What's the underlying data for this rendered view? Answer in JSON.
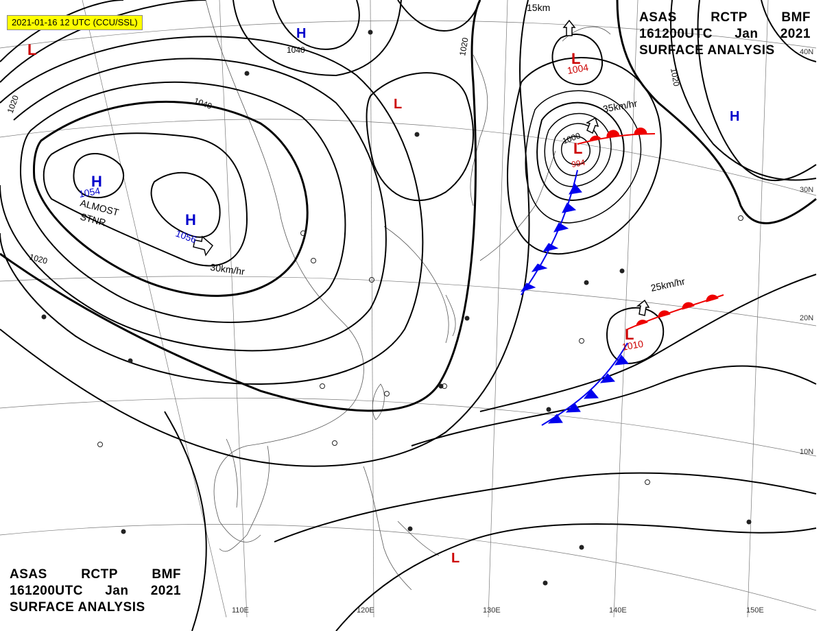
{
  "banner": {
    "text": "2021-01-16 12 UTC (CCU/SSL)"
  },
  "title": {
    "line1": [
      "ASAS",
      "RCTP",
      "BMF"
    ],
    "line2": [
      "161200UTC",
      "Jan",
      "2021"
    ],
    "line3": "SURFACE ANALYSIS"
  },
  "longitude_labels": [
    "110E",
    "120E",
    "130E",
    "140E",
    "150E"
  ],
  "latitude_labels": [
    "10N",
    "20N",
    "30N",
    "40N"
  ],
  "pressure_centers": [
    {
      "type": "H",
      "value": "1054",
      "color": "#0000cc"
    },
    {
      "type": "H",
      "value": "1056",
      "color": "#0000cc"
    },
    {
      "type": "H",
      "value": "1040",
      "color": "#000000"
    },
    {
      "type": "H",
      "value": "",
      "color": "#0000cc"
    },
    {
      "type": "L",
      "value": "1004",
      "color": "#cc0000"
    },
    {
      "type": "L",
      "value": "994",
      "color": "#cc0000"
    },
    {
      "type": "L",
      "value": "1010",
      "color": "#cc0000"
    },
    {
      "type": "L",
      "value": "",
      "color": "#cc0000"
    },
    {
      "type": "L",
      "value": "",
      "color": "#cc0000"
    },
    {
      "type": "L",
      "value": "",
      "color": "#cc0000"
    }
  ],
  "isobar_labels": [
    "1020",
    "1040",
    "1020",
    "1020",
    "1020",
    "1000"
  ],
  "annotations": {
    "almost": "ALMOST",
    "stnr": "STNR",
    "motion_1": "30km/hr",
    "motion_2": "35km/hr",
    "motion_3": "25km/hr",
    "motion_4": "15km"
  },
  "colors": {
    "warm_front": "#ee0000",
    "cold_front": "#0000ee",
    "high": "#0000cc",
    "low": "#cc0000",
    "banner": "#ffff00"
  }
}
